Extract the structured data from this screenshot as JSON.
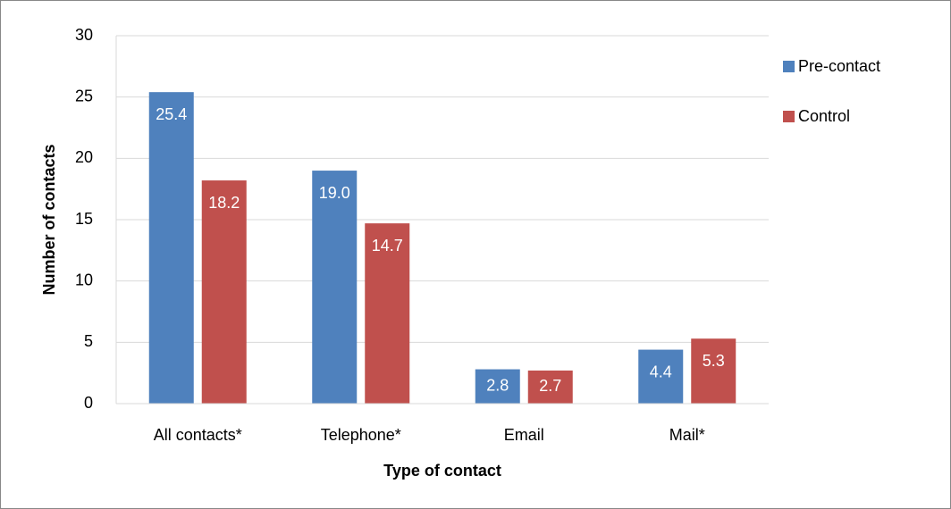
{
  "chart_data": {
    "type": "bar",
    "x_label": "Type of contact",
    "y_label": "Number of contacts",
    "categories": [
      "All contacts*",
      "Telephone*",
      "Email",
      "Mail*"
    ],
    "series": [
      {
        "name": "Pre-contact",
        "color": "#4f81bd",
        "values": [
          25.4,
          19.0,
          2.8,
          4.4
        ],
        "value_labels": [
          "25.4",
          "19.0",
          "2.8",
          "4.4"
        ]
      },
      {
        "name": "Control",
        "color": "#c0504d",
        "values": [
          18.2,
          14.7,
          2.7,
          5.3
        ],
        "value_labels": [
          "18.2",
          "14.7",
          "2.7",
          "5.3"
        ]
      }
    ],
    "ylim": [
      0,
      30
    ],
    "yticks": [
      0,
      5,
      10,
      15,
      20,
      25,
      30
    ],
    "grid": true,
    "legend": "right"
  }
}
